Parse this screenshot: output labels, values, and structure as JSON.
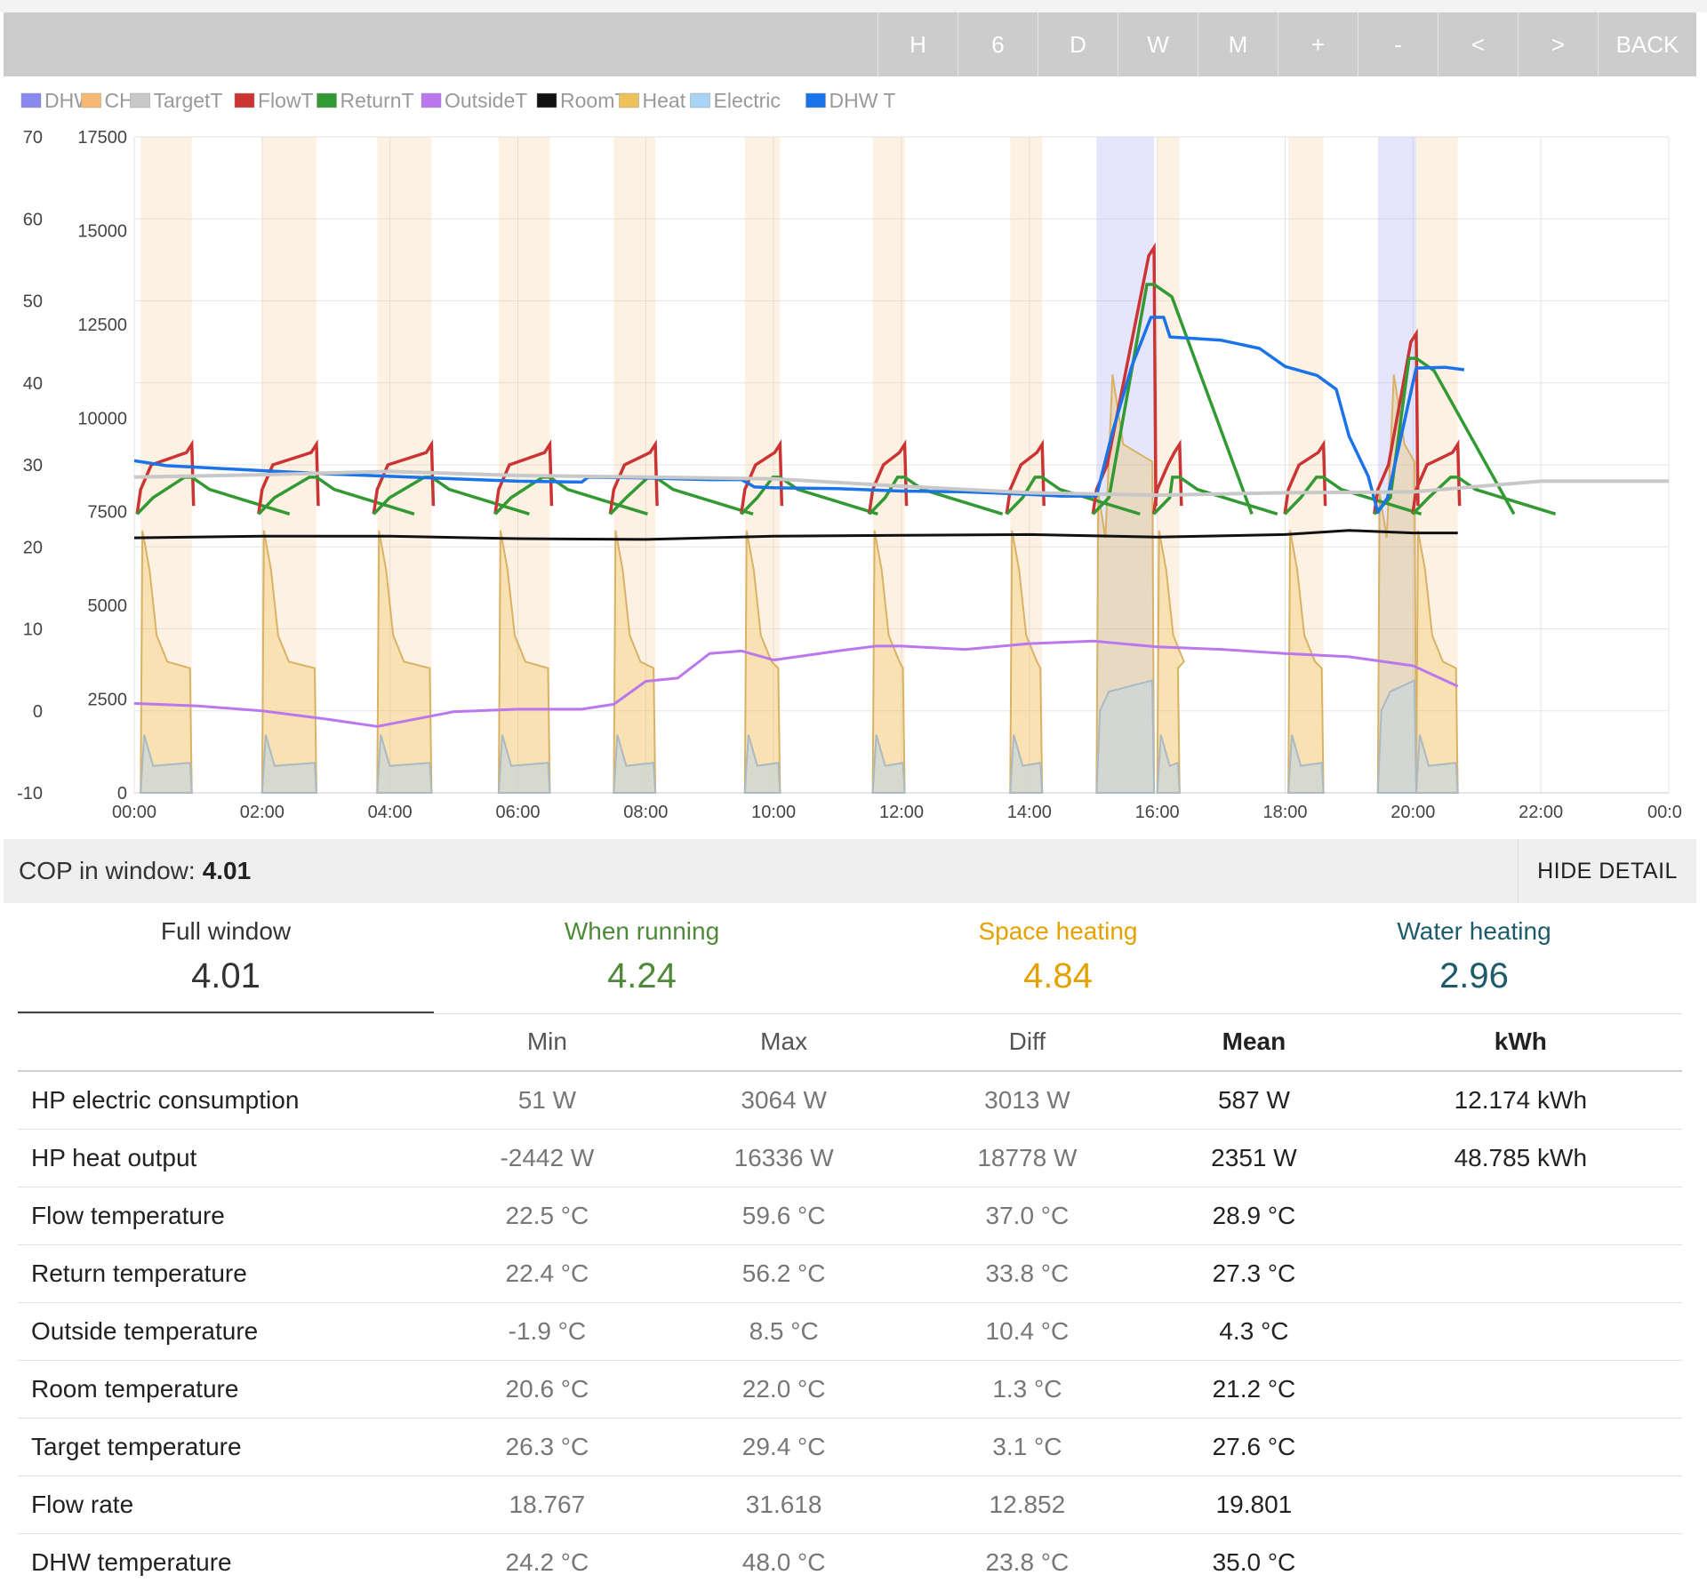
{
  "toolbar": {
    "buttons": [
      "H",
      "6",
      "D",
      "W",
      "M",
      "+",
      "-",
      "<",
      ">",
      "BACK"
    ]
  },
  "colors": {
    "DHW": "#8888ee",
    "CH": "#f5b971",
    "TargetT": "#c8c8c8",
    "FlowT": "#cc3333",
    "ReturnT": "#339933",
    "OutsideT": "#bb77ee",
    "RoomT": "#111111",
    "Heat": "#eec25a",
    "Electric": "#a9d4f5",
    "DHW T": "#1a73e8",
    "water_heating": "#1d5b6b",
    "when_running": "#4f8a3a",
    "space_heating": "#e5a100"
  },
  "chart_data": {
    "type": "line",
    "legend": [
      "DHW",
      "CH",
      "TargetT",
      "FlowT",
      "ReturnT",
      "OutsideT",
      "RoomT",
      "Heat",
      "Electric",
      "DHW T"
    ],
    "legend_position": "top-left",
    "x_ticks": [
      "00:00",
      "02:00",
      "04:00",
      "06:00",
      "08:00",
      "10:00",
      "12:00",
      "14:00",
      "16:00",
      "18:00",
      "20:00",
      "22:00",
      "00:0"
    ],
    "x_range_hours": [
      0,
      24
    ],
    "y_left_ticks": [
      70,
      60,
      50,
      40,
      30,
      20,
      10,
      0,
      -10
    ],
    "y_left_range": [
      -10,
      70
    ],
    "y_right_ticks": [
      17500,
      15000,
      12500,
      10000,
      7500,
      5000,
      2500,
      0
    ],
    "y_right_range": [
      0,
      17500
    ],
    "grid": true,
    "ch_periods_hours": [
      [
        0.1,
        0.9
      ],
      [
        2.0,
        2.85
      ],
      [
        3.8,
        4.65
      ],
      [
        5.7,
        6.5
      ],
      [
        7.5,
        8.15
      ],
      [
        9.55,
        10.1
      ],
      [
        11.55,
        12.05
      ],
      [
        13.7,
        14.2
      ],
      [
        16.0,
        16.35
      ],
      [
        18.05,
        18.6
      ],
      [
        20.05,
        20.7
      ]
    ],
    "dhw_periods_hours": [
      [
        15.05,
        15.95
      ],
      [
        19.45,
        20.05
      ]
    ],
    "series": [
      {
        "name": "DHW T",
        "x": [
          0.0,
          0.5,
          1.0,
          2.0,
          3.0,
          4.0,
          5.0,
          6.0,
          7.0,
          7.1,
          8.0,
          9.0,
          9.5,
          9.7,
          10.0,
          11.0,
          12.0,
          13.0,
          14.0,
          14.5,
          15.05,
          15.3,
          15.6,
          15.9,
          16.1,
          16.2,
          17.0,
          17.6,
          18.0,
          18.5,
          18.8,
          19.0,
          19.3,
          19.45,
          19.6,
          19.8,
          20.05,
          20.5,
          20.8
        ],
        "y": [
          30.5,
          29.9,
          29.7,
          29.3,
          28.9,
          28.6,
          28.3,
          28.0,
          27.9,
          28.5,
          28.4,
          28.2,
          28.2,
          27.3,
          27.2,
          27.1,
          26.8,
          26.7,
          26.4,
          26.2,
          26.2,
          34.0,
          42.0,
          48.0,
          48.0,
          45.6,
          45.2,
          44.2,
          42.0,
          40.9,
          39.2,
          33.5,
          28.6,
          24.2,
          26.0,
          33.0,
          41.8,
          41.9,
          41.6
        ]
      },
      {
        "name": "TargetT",
        "x": [
          0.0,
          2.0,
          4.0,
          6.0,
          8.0,
          10.0,
          12.0,
          14.0,
          16.0,
          18.0,
          20.0,
          22.0,
          24.0
        ],
        "y": [
          28.5,
          28.8,
          29.2,
          28.7,
          28.5,
          28.3,
          27.4,
          26.6,
          26.3,
          26.6,
          26.7,
          28.0,
          28.0
        ]
      },
      {
        "name": "RoomT",
        "x": [
          0.0,
          2.0,
          4.0,
          6.0,
          8.0,
          10.0,
          12.0,
          14.0,
          16.0,
          18.0,
          19.0,
          20.0,
          20.7
        ],
        "y": [
          21.1,
          21.3,
          21.3,
          21.0,
          20.9,
          21.3,
          21.4,
          21.5,
          21.2,
          21.5,
          22.0,
          21.7,
          21.7
        ]
      },
      {
        "name": "OutsideT",
        "x": [
          0.0,
          1.0,
          2.0,
          3.0,
          3.8,
          5.0,
          6.0,
          7.0,
          7.5,
          8.0,
          8.5,
          9.0,
          9.5,
          10.0,
          11.0,
          11.6,
          12.0,
          13.0,
          14.0,
          15.0,
          16.0,
          17.0,
          18.0,
          19.0,
          20.0,
          20.7
        ],
        "y": [
          0.9,
          0.6,
          0.0,
          -1.0,
          -1.9,
          -0.1,
          0.2,
          0.2,
          0.8,
          3.6,
          4.0,
          7.0,
          7.3,
          6.2,
          7.3,
          7.9,
          7.9,
          7.5,
          8.2,
          8.5,
          7.8,
          7.5,
          7.0,
          6.6,
          5.5,
          3.0
        ]
      }
    ]
  },
  "cop": {
    "label": "COP in window:",
    "value": "4.01",
    "hide_label": "HIDE DETAIL"
  },
  "summary": [
    {
      "title": "Full window",
      "value": "4.01"
    },
    {
      "title": "When running",
      "value": "4.24"
    },
    {
      "title": "Space heating",
      "value": "4.84"
    },
    {
      "title": "Water heating",
      "value": "2.96"
    }
  ],
  "table": {
    "headers": [
      "",
      "Min",
      "Max",
      "Diff",
      "Mean",
      "kWh"
    ],
    "rows": [
      {
        "name": "HP electric consumption",
        "min": "51 W",
        "max": "3064 W",
        "diff": "3013 W",
        "mean": "587 W",
        "kwh": "12.174 kWh"
      },
      {
        "name": "HP heat output",
        "min": "-2442 W",
        "max": "16336 W",
        "diff": "18778 W",
        "mean": "2351 W",
        "kwh": "48.785 kWh"
      },
      {
        "name": "Flow temperature",
        "min": "22.5 °C",
        "max": "59.6 °C",
        "diff": "37.0 °C",
        "mean": "28.9 °C",
        "kwh": ""
      },
      {
        "name": "Return temperature",
        "min": "22.4 °C",
        "max": "56.2 °C",
        "diff": "33.8 °C",
        "mean": "27.3 °C",
        "kwh": ""
      },
      {
        "name": "Outside temperature",
        "min": "-1.9 °C",
        "max": "8.5 °C",
        "diff": "10.4 °C",
        "mean": "4.3 °C",
        "kwh": ""
      },
      {
        "name": "Room temperature",
        "min": "20.6 °C",
        "max": "22.0 °C",
        "diff": "1.3 °C",
        "mean": "21.2 °C",
        "kwh": ""
      },
      {
        "name": "Target temperature",
        "min": "26.3 °C",
        "max": "29.4 °C",
        "diff": "3.1 °C",
        "mean": "27.6 °C",
        "kwh": ""
      },
      {
        "name": "Flow rate",
        "min": "18.767",
        "max": "31.618",
        "diff": "12.852",
        "mean": "19.801",
        "kwh": ""
      },
      {
        "name": "DHW temperature",
        "min": "24.2 °C",
        "max": "48.0 °C",
        "diff": "23.8 °C",
        "mean": "35.0 °C",
        "kwh": ""
      }
    ]
  }
}
